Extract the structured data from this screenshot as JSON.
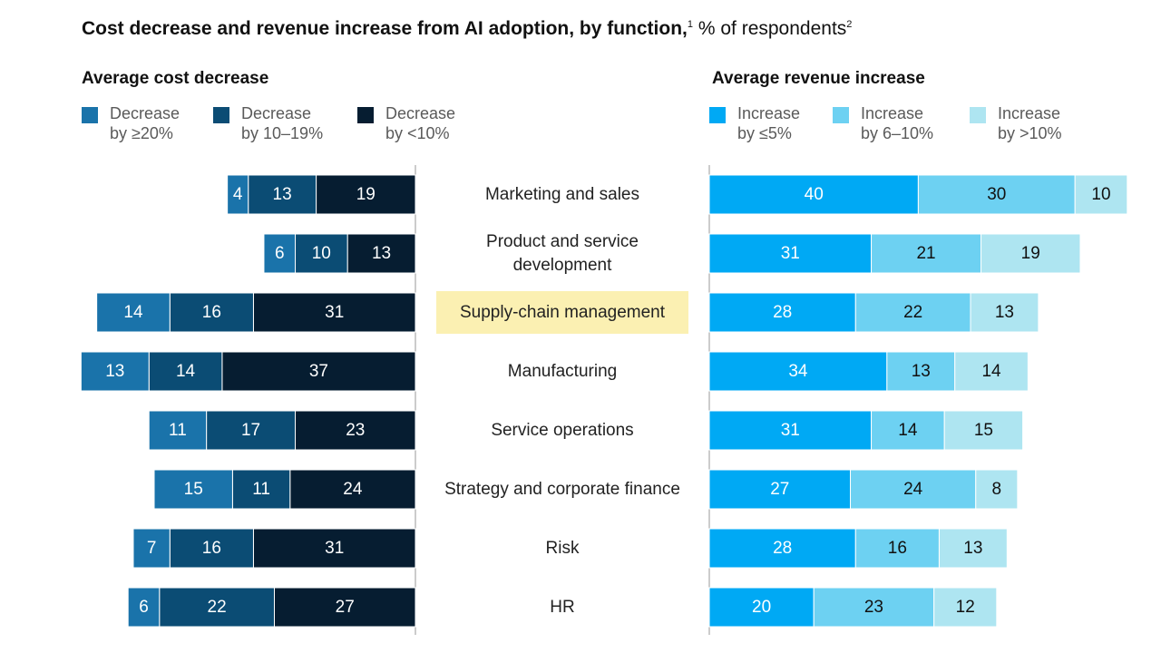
{
  "header": {
    "title_bold": "Cost decrease and revenue increase from AI adoption, by function,",
    "title_footnote_1": "1",
    "title_rest": " % of respondents",
    "title_footnote_2": "2"
  },
  "chart_data": {
    "type": "bar",
    "categories": [
      [
        "Marketing and sales"
      ],
      [
        "Product and service",
        "development"
      ],
      [
        "Supply-chain management"
      ],
      [
        "Manufacturing"
      ],
      [
        "Service operations"
      ],
      [
        "Strategy and corporate finance"
      ],
      [
        "Risk"
      ],
      [
        "HR"
      ]
    ],
    "highlighted_category": "Supply-chain management",
    "highlight_color": "#fbf0b2",
    "panels": {
      "cost": {
        "title": "Average cost decrease",
        "series": [
          {
            "name": "Decrease by ≥20%",
            "legend_lines": [
              "Decrease",
              "by ≥20%"
            ],
            "color": "#1a73aa",
            "values": [
              4,
              6,
              14,
              13,
              11,
              15,
              7,
              6
            ]
          },
          {
            "name": "Decrease by 10–19%",
            "legend_lines": [
              "Decrease",
              "by 10–19%"
            ],
            "color": "#0b4c74",
            "values": [
              13,
              10,
              16,
              14,
              17,
              11,
              16,
              22
            ]
          },
          {
            "name": "Decrease by <10%",
            "legend_lines": [
              "Decrease",
              "by <10%"
            ],
            "color": "#061d31",
            "values": [
              19,
              13,
              31,
              37,
              23,
              24,
              31,
              27
            ]
          }
        ]
      },
      "revenue": {
        "title": "Average revenue increase",
        "series": [
          {
            "name": "Increase by ≤5%",
            "legend_lines": [
              "Increase",
              "by ≤5%"
            ],
            "color": "#00a9f4",
            "values": [
              40,
              31,
              28,
              34,
              31,
              27,
              28,
              20
            ]
          },
          {
            "name": "Increase by 6–10%",
            "legend_lines": [
              "Increase",
              "by 6–10%"
            ],
            "color": "#6dd1f2",
            "values": [
              30,
              21,
              22,
              13,
              14,
              24,
              16,
              23
            ]
          },
          {
            "name": "Increase by >10%",
            "legend_lines": [
              "Increase",
              "by >10%"
            ],
            "color": "#aee5f1",
            "values": [
              10,
              19,
              13,
              14,
              15,
              8,
              13,
              12
            ]
          }
        ]
      }
    }
  }
}
